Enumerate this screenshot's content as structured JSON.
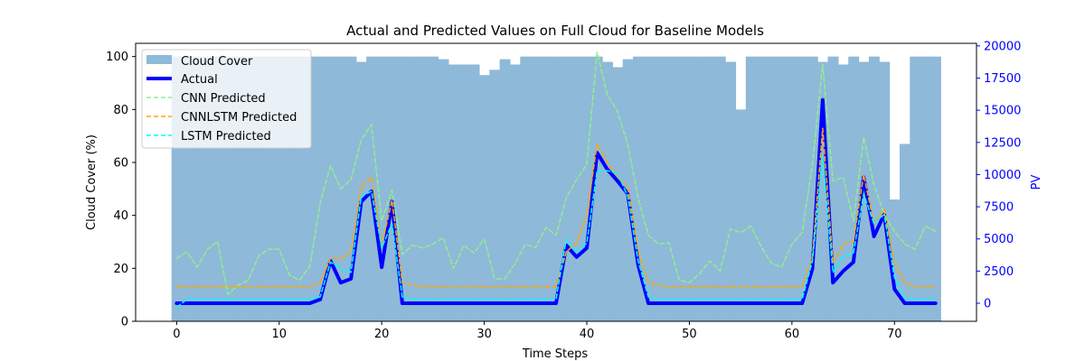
{
  "chart_data": {
    "type": "line",
    "title": "Actual and Predicted Values on Full Cloud for Baseline Models",
    "xlabel": "Time Steps",
    "ylabel_left": "Cloud Cover (%)",
    "ylabel_right": "PV",
    "xlim": [
      -4,
      78
    ],
    "ylim_left": [
      0,
      105
    ],
    "ylim_right": [
      -1400,
      20200
    ],
    "x_ticks": [
      0,
      10,
      20,
      30,
      40,
      50,
      60,
      70
    ],
    "y_ticks_left": [
      0,
      20,
      40,
      60,
      80,
      100
    ],
    "y_ticks_right": [
      0,
      2500,
      5000,
      7500,
      10000,
      12500,
      15000,
      17500,
      20000
    ],
    "grid": false,
    "legend_position": "upper-left",
    "colors": {
      "cloud_cover": "#8fb9d8",
      "actual": "#0000ff",
      "cnn": "#90ee90",
      "cnnlstm": "#ffa500",
      "lstm": "#00ffff",
      "right_axis": "#0000ff"
    },
    "x": [
      0,
      1,
      2,
      3,
      4,
      5,
      6,
      7,
      8,
      9,
      10,
      11,
      12,
      13,
      14,
      15,
      16,
      17,
      18,
      19,
      20,
      21,
      22,
      23,
      24,
      25,
      26,
      27,
      28,
      29,
      30,
      31,
      32,
      33,
      34,
      35,
      36,
      37,
      38,
      39,
      40,
      41,
      42,
      43,
      44,
      45,
      46,
      47,
      48,
      49,
      50,
      51,
      52,
      53,
      54,
      55,
      56,
      57,
      58,
      59,
      60,
      61,
      62,
      63,
      64,
      65,
      66,
      67,
      68,
      69,
      70,
      71,
      72,
      73,
      74
    ],
    "bars": {
      "name": "Cloud Cover",
      "axis": "left",
      "values": [
        100,
        100,
        100,
        100,
        100,
        100,
        100,
        100,
        100,
        100,
        100,
        100,
        100,
        100,
        100,
        100,
        100,
        100,
        98,
        100,
        100,
        100,
        100,
        100,
        100,
        100,
        99,
        97,
        97,
        97,
        93,
        95,
        99,
        97,
        100,
        100,
        100,
        100,
        100,
        100,
        100,
        100,
        98,
        96,
        99,
        100,
        100,
        100,
        100,
        100,
        100,
        100,
        100,
        100,
        98,
        80,
        100,
        100,
        100,
        100,
        100,
        100,
        100,
        98,
        100,
        97,
        100,
        98,
        100,
        98,
        46,
        67,
        100,
        100,
        100
      ]
    },
    "series": [
      {
        "name": "Actual",
        "axis": "right",
        "style": "solid",
        "values": [
          0,
          0,
          0,
          0,
          0,
          0,
          0,
          0,
          0,
          0,
          0,
          0,
          0,
          0,
          300,
          3300,
          1600,
          1900,
          7900,
          8700,
          2800,
          7900,
          0,
          0,
          0,
          0,
          0,
          0,
          0,
          0,
          0,
          0,
          0,
          0,
          0,
          0,
          0,
          0,
          4500,
          3600,
          4300,
          11700,
          10400,
          9500,
          8500,
          3000,
          0,
          0,
          0,
          0,
          0,
          0,
          0,
          0,
          0,
          0,
          0,
          0,
          0,
          0,
          0,
          0,
          2700,
          15800,
          1600,
          2500,
          3200,
          9800,
          5200,
          6900,
          1100,
          0,
          0,
          0,
          0
        ]
      },
      {
        "name": "CNN Predicted",
        "axis": "right",
        "style": "dashed",
        "values": [
          3500,
          4000,
          2800,
          4200,
          4800,
          700,
          1400,
          1800,
          3700,
          4200,
          4200,
          2200,
          1800,
          2900,
          7800,
          10700,
          8900,
          9600,
          12700,
          13900,
          6400,
          8800,
          3800,
          4500,
          4300,
          4600,
          5100,
          2700,
          4500,
          3900,
          5000,
          1900,
          1900,
          3100,
          4600,
          4300,
          5900,
          5300,
          8200,
          9600,
          10800,
          19500,
          16200,
          14900,
          12300,
          8200,
          5300,
          4600,
          4700,
          1800,
          1600,
          2300,
          3300,
          2500,
          5800,
          5500,
          6000,
          4400,
          3100,
          2800,
          4600,
          5500,
          10800,
          18600,
          9500,
          9800,
          6400,
          12900,
          9200,
          6900,
          5600,
          4600,
          4200,
          6000,
          5600
        ]
      },
      {
        "name": "CNNLSTM Predicted",
        "axis": "right",
        "style": "dashed",
        "values": [
          1300,
          1300,
          1300,
          1300,
          1300,
          1300,
          1300,
          1300,
          1300,
          1300,
          1300,
          1300,
          1300,
          1300,
          1600,
          3500,
          3500,
          4000,
          9100,
          9800,
          4500,
          8000,
          1600,
          1400,
          1300,
          1300,
          1300,
          1300,
          1300,
          1300,
          1300,
          1300,
          1300,
          1300,
          1300,
          1300,
          1300,
          1300,
          4000,
          4700,
          6800,
          12400,
          10900,
          9800,
          9000,
          4100,
          1600,
          1400,
          1300,
          1300,
          1300,
          1300,
          1300,
          1300,
          1300,
          1300,
          1300,
          1300,
          1300,
          1300,
          1300,
          1300,
          3600,
          13600,
          3100,
          4600,
          4800,
          10000,
          6200,
          7300,
          3100,
          1600,
          1300,
          1300,
          1300
        ]
      },
      {
        "name": "LSTM Predicted",
        "axis": "right",
        "style": "dashed",
        "values": [
          -300,
          300,
          300,
          300,
          300,
          300,
          300,
          300,
          300,
          300,
          300,
          300,
          300,
          300,
          500,
          3200,
          2700,
          2400,
          8300,
          8700,
          4300,
          6200,
          500,
          300,
          300,
          300,
          300,
          300,
          300,
          300,
          300,
          300,
          300,
          300,
          300,
          300,
          300,
          300,
          5000,
          3900,
          4700,
          10300,
          10300,
          10100,
          8300,
          3300,
          500,
          300,
          300,
          300,
          300,
          300,
          300,
          300,
          300,
          300,
          300,
          300,
          300,
          300,
          300,
          300,
          3300,
          11400,
          2400,
          3600,
          3900,
          8500,
          6200,
          6900,
          2000,
          400,
          300,
          300,
          300
        ]
      }
    ]
  },
  "legend": {
    "items": [
      {
        "label": "Cloud Cover"
      },
      {
        "label": "Actual"
      },
      {
        "label": "CNN Predicted"
      },
      {
        "label": "CNNLSTM Predicted"
      },
      {
        "label": "LSTM Predicted"
      }
    ]
  }
}
